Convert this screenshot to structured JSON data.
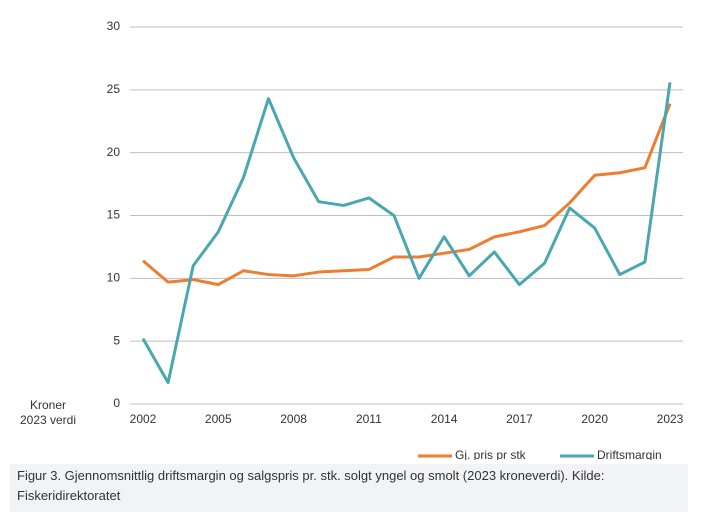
{
  "chart_data": {
    "type": "line",
    "y_label": [
      "Kroner",
      "2023 verdi"
    ],
    "x": [
      2002,
      2003,
      2004,
      2005,
      2006,
      2007,
      2008,
      2009,
      2010,
      2011,
      2012,
      2013,
      2014,
      2015,
      2016,
      2017,
      2018,
      2019,
      2020,
      2021,
      2022,
      2023
    ],
    "xlim": [
      2002,
      2023
    ],
    "xticks": [
      2002,
      2005,
      2008,
      2011,
      2014,
      2017,
      2020,
      2023
    ],
    "ylim": [
      0,
      30
    ],
    "yticks": [
      0,
      5,
      10,
      15,
      20,
      25,
      30
    ],
    "grid": true,
    "legend": "bottom",
    "series": [
      {
        "name": "Gj. pris pr stk",
        "color": "#ed7d31",
        "values": [
          11.4,
          9.7,
          9.9,
          9.5,
          10.6,
          10.3,
          10.2,
          10.5,
          10.6,
          10.7,
          11.7,
          11.7,
          12.0,
          12.3,
          13.3,
          13.7,
          14.2,
          16.0,
          18.2,
          18.4,
          18.8,
          23.9
        ]
      },
      {
        "name": "Driftsmargin",
        "color": "#4aa7af",
        "values": [
          5.2,
          1.7,
          11.0,
          13.7,
          18.0,
          24.3,
          19.6,
          16.1,
          15.8,
          16.4,
          15.0,
          10.0,
          13.3,
          10.2,
          12.1,
          9.5,
          11.2,
          15.6,
          14.0,
          10.3,
          11.3,
          25.6
        ]
      }
    ],
    "caption": "Figur 3. Gjennomsnittlig driftsmargin og salgspris pr. stk. solgt yngel og smolt (2023 kroneverdi). Kilde: Fiskeridirektoratet"
  }
}
